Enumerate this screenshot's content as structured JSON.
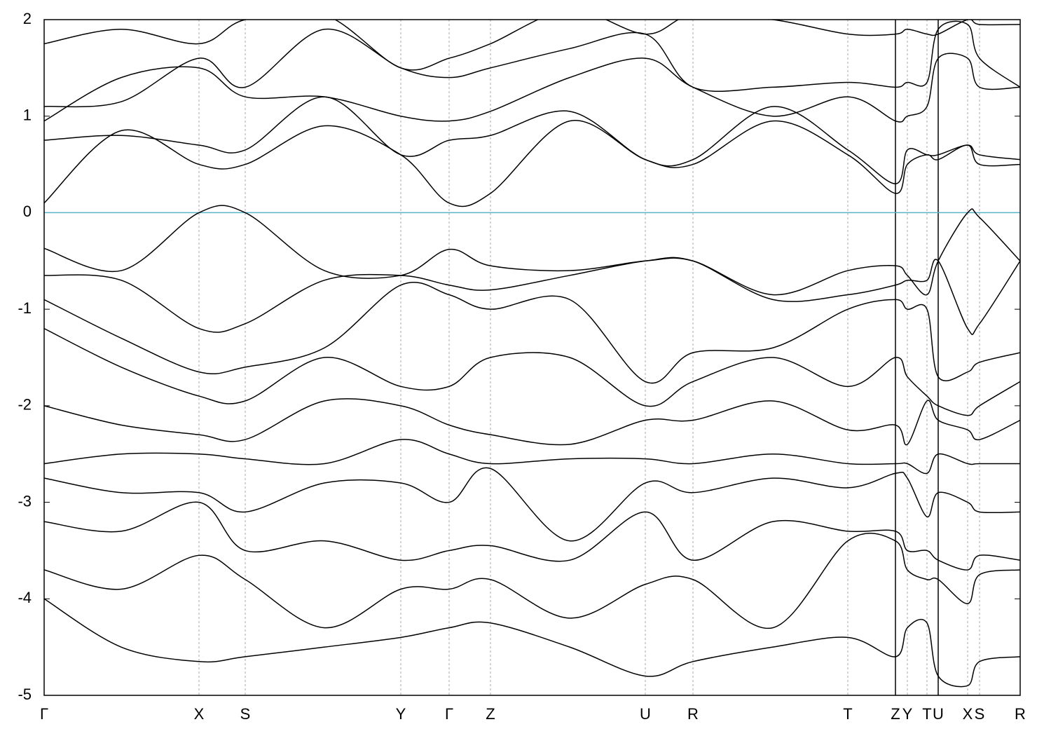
{
  "chart_data": {
    "type": "band_structure",
    "color": "#000000",
    "fermi_level": 0,
    "fermi_color": "#5ab4c8",
    "grid": true,
    "xlim": [
      0,
      13.93
    ],
    "ylim": [
      -5,
      2
    ],
    "yticks": [
      -5,
      -4,
      -3,
      -2,
      -1,
      0,
      1,
      2
    ],
    "xticks": [
      {
        "value": 0,
        "label": "Γ"
      },
      {
        "value": 2.21,
        "label": "X"
      },
      {
        "value": 2.87,
        "label": "S"
      },
      {
        "value": 5.09,
        "label": "Y"
      },
      {
        "value": 5.78,
        "label": "Γ"
      },
      {
        "value": 6.37,
        "label": "Z"
      },
      {
        "value": 8.58,
        "label": "U"
      },
      {
        "value": 9.26,
        "label": "R"
      },
      {
        "value": 11.47,
        "label": "T"
      },
      {
        "value": 12.15,
        "label": "Z",
        "break": true
      },
      {
        "value": 12.32,
        "label": "Y"
      },
      {
        "value": 12.6,
        "label": "T"
      },
      {
        "value": 12.76,
        "label": "U",
        "break": true
      },
      {
        "value": 13.18,
        "label": "X"
      },
      {
        "value": 13.35,
        "label": "S"
      },
      {
        "value": 13.93,
        "label": "R"
      }
    ],
    "x": [
      0,
      1.1,
      2.21,
      2.87,
      4.0,
      5.09,
      5.78,
      6.37,
      7.5,
      8.58,
      9.26,
      10.4,
      11.47,
      12.15,
      12.32,
      12.6,
      12.76,
      13.18,
      13.35,
      13.93
    ],
    "series": [
      {
        "values": [
          -0.37,
          -0.6,
          0.0,
          0.0,
          -0.6,
          -0.65,
          -0.38,
          -0.55,
          -0.6,
          -0.5,
          -0.5,
          -0.85,
          -0.6,
          -0.55,
          -0.65,
          -0.85,
          -0.5,
          0.0,
          -0.05,
          -0.5
        ]
      },
      {
        "values": [
          -0.65,
          -0.7,
          -1.2,
          -1.15,
          -0.7,
          -0.65,
          -0.75,
          -0.8,
          -0.65,
          -0.5,
          -0.5,
          -0.9,
          -0.85,
          -0.75,
          -0.7,
          -0.7,
          -0.5,
          -1.2,
          -1.15,
          -0.5
        ]
      },
      {
        "values": [
          -0.9,
          -1.3,
          -1.65,
          -1.6,
          -1.4,
          -0.75,
          -0.85,
          -1.0,
          -0.9,
          -1.75,
          -1.45,
          -1.4,
          -1.0,
          -0.9,
          -1.0,
          -1.0,
          -1.7,
          -1.65,
          -1.55,
          -1.45
        ]
      },
      {
        "values": [
          -1.2,
          -1.6,
          -1.9,
          -1.95,
          -1.5,
          -1.8,
          -1.8,
          -1.5,
          -1.5,
          -2.0,
          -1.75,
          -1.5,
          -1.8,
          -1.5,
          -1.7,
          -1.9,
          -2.0,
          -2.1,
          -2.0,
          -1.75
        ]
      },
      {
        "values": [
          -2.0,
          -2.2,
          -2.3,
          -2.35,
          -1.95,
          -2.0,
          -2.2,
          -2.3,
          -2.4,
          -2.15,
          -2.15,
          -1.95,
          -2.25,
          -2.2,
          -2.4,
          -1.95,
          -2.15,
          -2.25,
          -2.35,
          -2.15
        ]
      },
      {
        "values": [
          -2.6,
          -2.5,
          -2.5,
          -2.55,
          -2.6,
          -2.35,
          -2.5,
          -2.6,
          -2.55,
          -2.55,
          -2.6,
          -2.5,
          -2.6,
          -2.6,
          -2.6,
          -2.7,
          -2.5,
          -2.6,
          -2.6,
          -2.6
        ]
      },
      {
        "values": [
          -2.75,
          -2.9,
          -2.9,
          -3.1,
          -2.8,
          -2.8,
          -3.0,
          -2.65,
          -3.4,
          -2.8,
          -2.9,
          -2.75,
          -2.85,
          -2.7,
          -2.75,
          -3.15,
          -2.9,
          -3.0,
          -3.1,
          -3.1
        ]
      },
      {
        "values": [
          -3.2,
          -3.3,
          -3.0,
          -3.5,
          -3.4,
          -3.6,
          -3.5,
          -3.45,
          -3.6,
          -3.1,
          -3.6,
          -3.2,
          -3.3,
          -3.3,
          -3.5,
          -3.5,
          -3.6,
          -3.7,
          -3.55,
          -3.6
        ]
      },
      {
        "values": [
          -3.7,
          -3.9,
          -3.55,
          -3.8,
          -4.3,
          -3.9,
          -3.9,
          -3.8,
          -4.2,
          -3.85,
          -3.8,
          -4.3,
          -3.4,
          -3.4,
          -3.7,
          -3.8,
          -3.8,
          -4.05,
          -3.75,
          -3.7
        ]
      },
      {
        "values": [
          -4.0,
          -4.5,
          -4.65,
          -4.6,
          -4.5,
          -4.4,
          -4.3,
          -4.25,
          -4.5,
          -4.8,
          -4.65,
          -4.5,
          -4.4,
          -4.6,
          -4.3,
          -4.25,
          -4.8,
          -4.9,
          -4.65,
          -4.6
        ]
      },
      {
        "values": [
          0.1,
          0.85,
          0.5,
          0.5,
          0.9,
          0.6,
          0.1,
          0.2,
          0.95,
          0.55,
          0.5,
          0.95,
          0.6,
          0.2,
          0.5,
          0.6,
          0.55,
          0.7,
          0.5,
          0.5
        ]
      },
      {
        "values": [
          0.75,
          0.8,
          0.7,
          0.65,
          1.2,
          0.6,
          0.75,
          0.8,
          1.05,
          0.55,
          0.55,
          1.1,
          0.65,
          0.3,
          0.65,
          0.6,
          0.6,
          0.7,
          0.6,
          0.55
        ]
      },
      {
        "values": [
          0.95,
          1.4,
          1.5,
          1.2,
          1.2,
          1.0,
          0.95,
          1.05,
          1.4,
          1.6,
          1.3,
          1.0,
          1.2,
          0.95,
          1.0,
          1.1,
          1.6,
          1.6,
          1.3,
          1.3
        ]
      },
      {
        "values": [
          1.1,
          1.15,
          1.6,
          1.3,
          1.9,
          1.5,
          1.4,
          1.5,
          1.7,
          1.85,
          1.3,
          1.3,
          1.35,
          1.3,
          1.35,
          1.35,
          1.9,
          1.95,
          1.6,
          1.3
        ]
      },
      {
        "values": [
          1.75,
          1.9,
          1.75,
          2.0,
          2.05,
          1.5,
          1.6,
          1.75,
          2.1,
          1.85,
          2.05,
          2.0,
          1.85,
          1.85,
          1.9,
          1.85,
          1.85,
          2.0,
          1.95,
          1.95
        ]
      }
    ]
  }
}
